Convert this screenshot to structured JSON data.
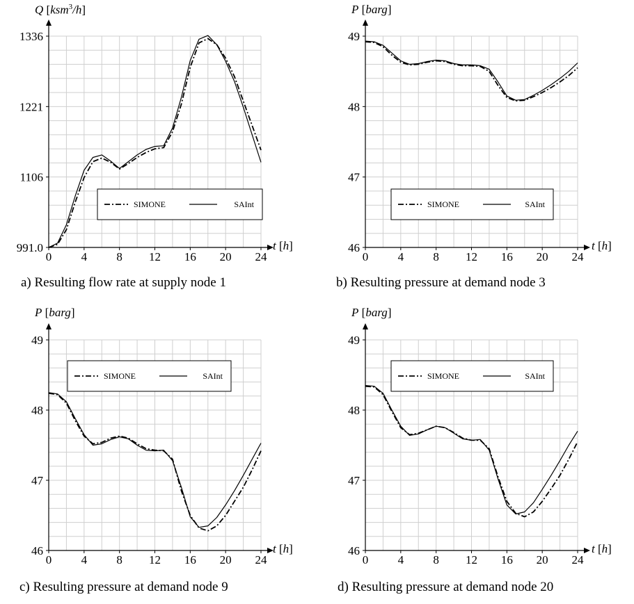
{
  "chart_data": [
    {
      "type": "line",
      "caption": "a) Resulting flow rate at supply node 1",
      "ylabel_var": "Q",
      "ylabel_unit_pre": "ksm",
      "ylabel_unit_sup": "3",
      "ylabel_unit_post": "/h",
      "xlabel_var": "t",
      "xlabel_unit": "h",
      "xlim": [
        0,
        24
      ],
      "ylim": [
        991.0,
        1336
      ],
      "xticks": [
        0,
        4,
        8,
        12,
        16,
        20,
        24
      ],
      "yticks": [
        991.0,
        1106,
        1221,
        1336
      ],
      "ytick_labels": [
        "991.0",
        "1106",
        "1221",
        "1336"
      ],
      "grid": true,
      "legend_position": "lower-center",
      "series": [
        {
          "name": "SIMONE",
          "style": "dash-dot",
          "x": [
            0,
            1,
            2,
            3,
            4,
            5,
            6,
            7,
            8,
            9,
            10,
            11,
            12,
            13,
            14,
            15,
            16,
            17,
            18,
            19,
            20,
            21,
            22,
            23,
            24
          ],
          "y": [
            991,
            996,
            1020,
            1065,
            1105,
            1131,
            1137,
            1130,
            1119,
            1128,
            1138,
            1146,
            1152,
            1154,
            1180,
            1225,
            1285,
            1325,
            1332,
            1322,
            1300,
            1270,
            1230,
            1190,
            1150
          ]
        },
        {
          "name": "SAInt",
          "style": "solid",
          "x": [
            0,
            1,
            2,
            3,
            4,
            5,
            6,
            7,
            8,
            9,
            10,
            11,
            12,
            13,
            14,
            15,
            16,
            17,
            18,
            19,
            20,
            21,
            22,
            23,
            24
          ],
          "y": [
            991,
            998,
            1028,
            1075,
            1117,
            1138,
            1142,
            1132,
            1120,
            1131,
            1142,
            1151,
            1156,
            1157,
            1186,
            1236,
            1296,
            1331,
            1337,
            1322,
            1295,
            1262,
            1220,
            1175,
            1130
          ]
        }
      ]
    },
    {
      "type": "line",
      "caption": "b) Resulting pressure at demand node 3",
      "ylabel_var": "P",
      "ylabel_unit": "barg",
      "xlabel_var": "t",
      "xlabel_unit": "h",
      "xlim": [
        0,
        24
      ],
      "ylim": [
        46,
        49
      ],
      "xticks": [
        0,
        4,
        8,
        12,
        16,
        20,
        24
      ],
      "yticks": [
        46,
        47,
        48,
        49
      ],
      "ytick_labels": [
        "46",
        "47",
        "48",
        "49"
      ],
      "grid": true,
      "legend_position": "lower-center",
      "series": [
        {
          "name": "SIMONE",
          "style": "dash-dot",
          "x": [
            0,
            1,
            2,
            3,
            4,
            5,
            6,
            7,
            8,
            9,
            10,
            11,
            12,
            13,
            14,
            15,
            16,
            17,
            18,
            19,
            20,
            21,
            22,
            23,
            24
          ],
          "y": [
            48.92,
            48.91,
            48.85,
            48.73,
            48.63,
            48.59,
            48.6,
            48.63,
            48.65,
            48.64,
            48.6,
            48.58,
            48.58,
            48.57,
            48.5,
            48.3,
            48.13,
            48.08,
            48.09,
            48.14,
            48.2,
            48.27,
            48.35,
            48.44,
            48.55
          ]
        },
        {
          "name": "SAInt",
          "style": "solid",
          "x": [
            0,
            1,
            2,
            3,
            4,
            5,
            6,
            7,
            8,
            9,
            10,
            11,
            12,
            13,
            14,
            15,
            16,
            17,
            18,
            19,
            20,
            21,
            22,
            23,
            24
          ],
          "y": [
            48.93,
            48.92,
            48.87,
            48.76,
            48.65,
            48.6,
            48.61,
            48.64,
            48.66,
            48.65,
            48.61,
            48.59,
            48.59,
            48.58,
            48.53,
            48.35,
            48.15,
            48.09,
            48.1,
            48.16,
            48.23,
            48.31,
            48.4,
            48.5,
            48.62
          ]
        }
      ]
    },
    {
      "type": "line",
      "caption": "c) Resulting pressure at demand node 9",
      "ylabel_var": "P",
      "ylabel_unit": "barg",
      "xlabel_var": "t",
      "xlabel_unit": "h",
      "xlim": [
        0,
        24
      ],
      "ylim": [
        46,
        49
      ],
      "xticks": [
        0,
        4,
        8,
        12,
        16,
        20,
        24
      ],
      "yticks": [
        46,
        47,
        48,
        49
      ],
      "ytick_labels": [
        "46",
        "47",
        "48",
        "49"
      ],
      "grid": true,
      "legend_position": "top-center",
      "series": [
        {
          "name": "SIMONE",
          "style": "dash-dot",
          "x": [
            0,
            1,
            2,
            3,
            4,
            5,
            6,
            7,
            8,
            9,
            10,
            11,
            12,
            13,
            14,
            15,
            16,
            17,
            18,
            19,
            20,
            21,
            22,
            23,
            24
          ],
          "y": [
            48.24,
            48.22,
            48.1,
            47.85,
            47.63,
            47.52,
            47.54,
            47.6,
            47.63,
            47.6,
            47.52,
            47.45,
            47.43,
            47.42,
            47.3,
            46.85,
            46.5,
            46.32,
            46.28,
            46.35,
            46.5,
            46.7,
            46.9,
            47.15,
            47.42
          ]
        },
        {
          "name": "SAInt",
          "style": "solid",
          "x": [
            0,
            1,
            2,
            3,
            4,
            5,
            6,
            7,
            8,
            9,
            10,
            11,
            12,
            13,
            14,
            15,
            16,
            17,
            18,
            19,
            20,
            21,
            22,
            23,
            24
          ],
          "y": [
            48.25,
            48.23,
            48.12,
            47.88,
            47.65,
            47.5,
            47.52,
            47.58,
            47.62,
            47.59,
            47.5,
            47.43,
            47.42,
            47.43,
            47.28,
            46.9,
            46.48,
            46.33,
            46.35,
            46.47,
            46.65,
            46.85,
            47.07,
            47.3,
            47.53
          ]
        }
      ]
    },
    {
      "type": "line",
      "caption": "d) Resulting pressure at demand node 20",
      "ylabel_var": "P",
      "ylabel_unit": "barg",
      "xlabel_var": "t",
      "xlabel_unit": "h",
      "xlim": [
        0,
        24
      ],
      "ylim": [
        46,
        49
      ],
      "xticks": [
        0,
        4,
        8,
        12,
        16,
        20,
        24
      ],
      "yticks": [
        46,
        47,
        48,
        49
      ],
      "ytick_labels": [
        "46",
        "47",
        "48",
        "49"
      ],
      "grid": true,
      "legend_position": "top-center",
      "series": [
        {
          "name": "SIMONE",
          "style": "dash-dot",
          "x": [
            0,
            1,
            2,
            3,
            4,
            5,
            6,
            7,
            8,
            9,
            10,
            11,
            12,
            13,
            14,
            15,
            16,
            17,
            18,
            19,
            20,
            21,
            22,
            23,
            24
          ],
          "y": [
            48.34,
            48.33,
            48.22,
            47.98,
            47.75,
            47.65,
            47.67,
            47.72,
            47.77,
            47.75,
            47.68,
            47.6,
            47.57,
            47.57,
            47.45,
            47.05,
            46.7,
            46.53,
            46.48,
            46.55,
            46.7,
            46.88,
            47.07,
            47.3,
            47.55
          ]
        },
        {
          "name": "SAInt",
          "style": "solid",
          "x": [
            0,
            1,
            2,
            3,
            4,
            5,
            6,
            7,
            8,
            9,
            10,
            11,
            12,
            13,
            14,
            15,
            16,
            17,
            18,
            19,
            20,
            21,
            22,
            23,
            24
          ],
          "y": [
            48.35,
            48.34,
            48.24,
            48.0,
            47.77,
            47.64,
            47.66,
            47.72,
            47.77,
            47.75,
            47.67,
            47.59,
            47.57,
            47.58,
            47.43,
            47.02,
            46.65,
            46.52,
            46.55,
            46.68,
            46.87,
            47.07,
            47.28,
            47.5,
            47.7
          ]
        }
      ]
    }
  ]
}
